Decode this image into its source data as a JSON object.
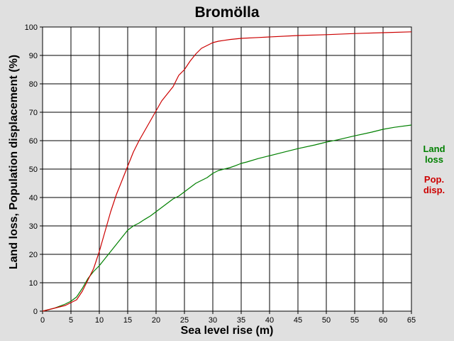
{
  "chart_data": {
    "type": "line",
    "title": "Bromölla",
    "xlabel": "Sea level rise (m)",
    "ylabel": "Land loss, Population displacement (%)",
    "xlim": [
      0,
      65
    ],
    "ylim": [
      0,
      100
    ],
    "x_ticks": [
      "0",
      "5",
      "10",
      "15",
      "20",
      "25",
      "30",
      "35",
      "40",
      "45",
      "50",
      "55",
      "60",
      "65"
    ],
    "y_ticks": [
      "0",
      "10",
      "20",
      "30",
      "40",
      "50",
      "60",
      "70",
      "80",
      "90",
      "100"
    ],
    "grid": true,
    "legend_position": "right",
    "series": [
      {
        "name": "Land loss",
        "legend_lines": [
          "Land",
          "loss"
        ],
        "color": "#008000",
        "x": [
          0,
          2,
          4,
          5,
          6,
          7,
          8,
          9,
          10,
          11,
          12,
          13,
          14,
          15,
          16,
          17,
          18,
          19,
          20,
          21,
          22,
          23,
          24,
          25,
          26,
          27,
          28,
          29,
          30,
          31,
          32,
          33,
          34,
          35,
          36,
          38,
          40,
          42,
          45,
          48,
          50,
          52,
          55,
          58,
          60,
          62,
          65
        ],
        "values": [
          0,
          1,
          2.5,
          3.5,
          5,
          8,
          11.5,
          14,
          16,
          18.5,
          21,
          23.5,
          26,
          28.5,
          30,
          31,
          32.3,
          33.5,
          35,
          36.5,
          38,
          39.5,
          40.5,
          42,
          43.5,
          45,
          46,
          47,
          48.5,
          49.5,
          50,
          50.5,
          51.2,
          52,
          52.5,
          53.7,
          54.7,
          55.7,
          57.2,
          58.5,
          59.5,
          60.3,
          61.7,
          63,
          64,
          64.7,
          65.5
        ]
      },
      {
        "name": "Pop. disp.",
        "legend_lines": [
          "Pop.",
          "disp."
        ],
        "color": "#cc0000",
        "x": [
          0,
          2,
          4,
          5,
          6,
          7,
          8,
          9,
          10,
          11,
          12,
          13,
          14,
          15,
          16,
          17,
          18,
          19,
          20,
          21,
          22,
          23,
          24,
          25,
          26,
          27,
          28,
          29,
          30,
          31,
          32,
          33,
          35,
          38,
          40,
          45,
          50,
          55,
          60,
          65
        ],
        "values": [
          0,
          1,
          2,
          3,
          4,
          7,
          11,
          15,
          21,
          28,
          35,
          41,
          46,
          51,
          56,
          60,
          63.5,
          67,
          70.5,
          74,
          76.5,
          79,
          83,
          85,
          88,
          90.5,
          92.5,
          93.5,
          94.5,
          95,
          95.3,
          95.6,
          96,
          96.3,
          96.5,
          97,
          97.3,
          97.7,
          98,
          98.3
        ]
      }
    ]
  }
}
